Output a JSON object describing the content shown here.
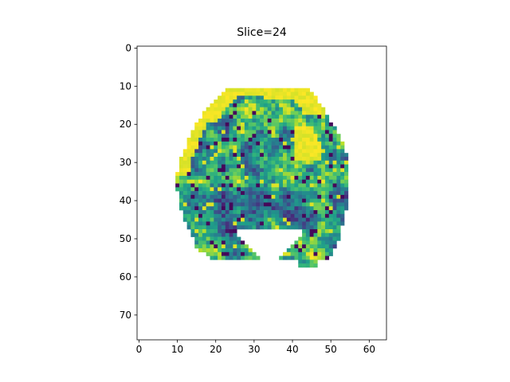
{
  "figure": {
    "title": "Slice=24"
  },
  "chart_data": {
    "type": "heatmap",
    "title": "Slice=24",
    "xlabel": "",
    "ylabel": "",
    "x_ticks": [
      "0",
      "10",
      "20",
      "30",
      "40",
      "50",
      "60"
    ],
    "y_ticks": [
      "0",
      "10",
      "20",
      "30",
      "40",
      "50",
      "60",
      "70"
    ],
    "x_range": [
      -0.5,
      64.5
    ],
    "y_range": [
      76.5,
      -0.5
    ],
    "colormap": "viridis",
    "colors": {
      "low": "#440154",
      "midlow": "#31688e",
      "mid": "#21918c",
      "midhigh": "#5ec962",
      "high": "#fde725",
      "background": "#ffffff"
    },
    "mask_description_rows": [
      {
        "row": 11,
        "x_from": 23,
        "x_to": 44
      },
      {
        "row": 15,
        "x_from": 19,
        "x_to": 47
      },
      {
        "row": 20,
        "x_from": 15,
        "x_to": 50
      },
      {
        "row": 25,
        "x_from": 13,
        "x_to": 53
      },
      {
        "row": 30,
        "x_from": 11,
        "x_to": 54
      },
      {
        "row": 35,
        "x_from": 10,
        "x_to": 54
      },
      {
        "row": 40,
        "x_from": 11,
        "x_to": 54
      },
      {
        "row": 45,
        "x_from": 12,
        "x_to": 53
      },
      {
        "row": 48,
        "x_from": 14,
        "x_to": 52
      },
      {
        "row": 52,
        "x_from": 15,
        "x_to": 51
      },
      {
        "row": 55,
        "x_from": 19,
        "x_to": 49
      },
      {
        "row": 57,
        "x_from": 42,
        "x_to": 46
      }
    ]
  }
}
